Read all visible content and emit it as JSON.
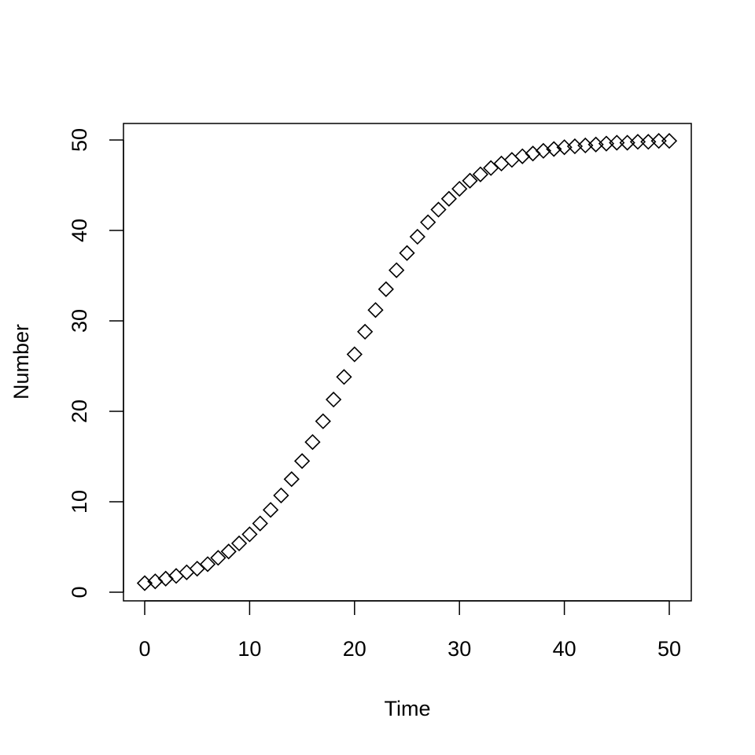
{
  "chart_data": {
    "type": "scatter",
    "title": "",
    "xlabel": "Time",
    "ylabel": "Number",
    "xlim": [
      0,
      50
    ],
    "ylim": [
      0,
      50
    ],
    "xticks": [
      0,
      10,
      20,
      30,
      40,
      50
    ],
    "yticks": [
      0,
      10,
      20,
      30,
      40,
      50
    ],
    "grid": false,
    "marker": "diamond-open",
    "series": [
      {
        "x": [
          0,
          1,
          2,
          3,
          4,
          5,
          6,
          7,
          8,
          9,
          10,
          11,
          12,
          13,
          14,
          15,
          16,
          17,
          18,
          19,
          20,
          21,
          22,
          23,
          24,
          25,
          26,
          27,
          28,
          29,
          30,
          31,
          32,
          33,
          34,
          35,
          36,
          37,
          38,
          39,
          40,
          41,
          42,
          43,
          44,
          45,
          46,
          47,
          48,
          49,
          50
        ],
        "y": [
          1.0,
          1.2,
          1.5,
          1.8,
          2.2,
          2.6,
          3.1,
          3.8,
          4.5,
          5.4,
          6.4,
          7.6,
          9.1,
          10.7,
          12.5,
          14.5,
          16.6,
          18.9,
          21.3,
          23.8,
          26.3,
          28.8,
          31.2,
          33.5,
          35.6,
          37.5,
          39.3,
          40.9,
          42.3,
          43.5,
          44.6,
          45.5,
          46.2,
          46.9,
          47.4,
          47.8,
          48.2,
          48.5,
          48.8,
          49.0,
          49.2,
          49.3,
          49.4,
          49.5,
          49.6,
          49.7,
          49.7,
          49.8,
          49.8,
          49.9,
          49.9
        ],
        "color": "#000000"
      }
    ]
  }
}
